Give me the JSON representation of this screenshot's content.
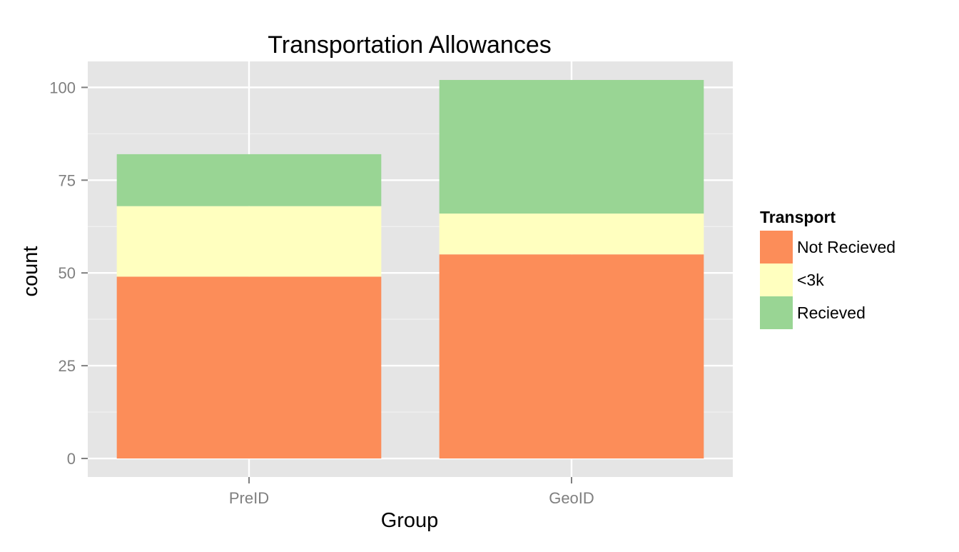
{
  "chart_data": {
    "type": "bar",
    "stacked": true,
    "title": "Transportation Allowances",
    "xlabel": "Group",
    "ylabel": "count",
    "categories": [
      "PreID",
      "GeoID"
    ],
    "series": [
      {
        "name": "Not Recieved",
        "color": "#FC8D59",
        "values": [
          49,
          55
        ]
      },
      {
        "name": "<3k",
        "color": "#FFFFBF",
        "values": [
          19,
          11
        ]
      },
      {
        "name": "Recieved",
        "color": "#99D594",
        "values": [
          14,
          36
        ]
      }
    ],
    "ylim": [
      -5,
      107
    ],
    "yticks": [
      0,
      25,
      50,
      75,
      100
    ],
    "ytick_labels": [
      "0",
      "25",
      "50",
      "75",
      "100"
    ],
    "legend": {
      "title": "Transport",
      "placement": "right"
    },
    "grid": true,
    "colors": {
      "panel_background": "#E5E5E5",
      "grid_major": "#FFFFFF",
      "grid_minor": "#F2F2F2",
      "tick_label": "#7F7F7F",
      "text": "#000000"
    }
  }
}
